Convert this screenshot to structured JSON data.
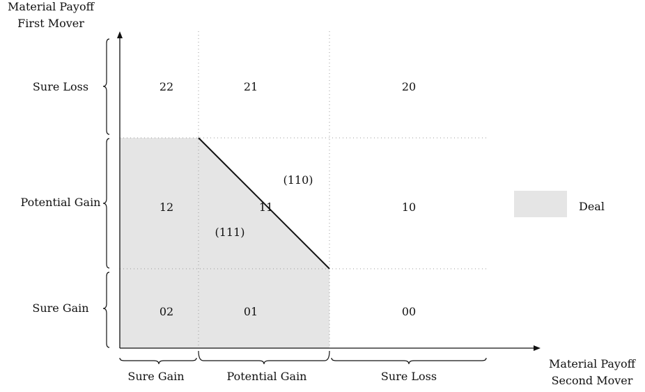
{
  "axes": {
    "y_title_line1": "Material Payoff",
    "y_title_line2": "First Mover",
    "x_title_line1": "Material Payoff",
    "x_title_line2": "Second Mover"
  },
  "y_groups": [
    "Sure Loss",
    "Potential Gain",
    "Sure Gain"
  ],
  "x_groups": [
    "Sure Gain",
    "Potential Gain",
    "Sure Loss"
  ],
  "cells": {
    "c22": "22",
    "c21": "21",
    "c20": "20",
    "c12": "12",
    "c11": "11",
    "c10": "10",
    "c02": "02",
    "c01": "01",
    "c00": "00"
  },
  "regions": {
    "r110": "(110)",
    "r111": "(111)"
  },
  "legend": {
    "label": "Deal",
    "color": "#e5e5e5"
  },
  "colors": {
    "deal_fill": "#e5e5e5",
    "grid": "#999999",
    "ink": "#111111"
  }
}
